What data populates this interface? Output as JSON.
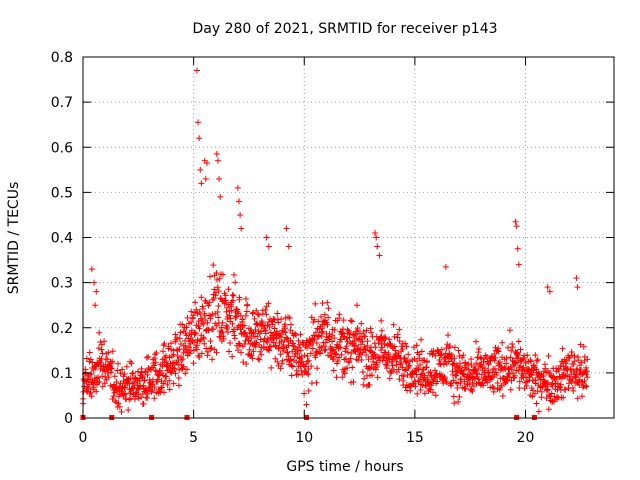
{
  "chart_data": {
    "type": "scatter",
    "title": "Day 280 of 2021, SRMTID for receiver p143",
    "xlabel": "GPS time / hours",
    "ylabel": "SRMTID / TECUs",
    "xlim": [
      0,
      24
    ],
    "ylim": [
      0,
      0.8
    ],
    "xticks": [
      0,
      5,
      10,
      15,
      20
    ],
    "yticks": [
      0,
      0.1,
      0.2,
      0.3,
      0.4,
      0.5,
      0.6,
      0.7,
      0.8
    ],
    "grid": true,
    "marker": "plus",
    "color": "#ff0000",
    "baseline_markers_x": [
      0.0,
      1.3,
      3.1,
      4.7,
      10.1,
      19.6,
      20.4
    ],
    "trend": [
      [
        0.0,
        0.07
      ],
      [
        0.5,
        0.09
      ],
      [
        0.8,
        0.13
      ],
      [
        1.5,
        0.07
      ],
      [
        2.5,
        0.07
      ],
      [
        3.0,
        0.09
      ],
      [
        3.5,
        0.1
      ],
      [
        4.0,
        0.12
      ],
      [
        4.5,
        0.15
      ],
      [
        5.0,
        0.19
      ],
      [
        5.5,
        0.22
      ],
      [
        6.0,
        0.24
      ],
      [
        6.5,
        0.23
      ],
      [
        7.0,
        0.21
      ],
      [
        7.5,
        0.19
      ],
      [
        8.0,
        0.18
      ],
      [
        8.5,
        0.19
      ],
      [
        9.0,
        0.17
      ],
      [
        9.5,
        0.15
      ],
      [
        10.0,
        0.13
      ],
      [
        10.5,
        0.17
      ],
      [
        11.0,
        0.19
      ],
      [
        11.5,
        0.17
      ],
      [
        12.0,
        0.15
      ],
      [
        12.5,
        0.16
      ],
      [
        13.0,
        0.13
      ],
      [
        13.5,
        0.15
      ],
      [
        14.0,
        0.14
      ],
      [
        14.5,
        0.12
      ],
      [
        15.0,
        0.11
      ],
      [
        15.5,
        0.1
      ],
      [
        16.0,
        0.11
      ],
      [
        16.5,
        0.12
      ],
      [
        17.0,
        0.1
      ],
      [
        17.5,
        0.09
      ],
      [
        18.0,
        0.1
      ],
      [
        18.5,
        0.1
      ],
      [
        19.0,
        0.11
      ],
      [
        19.5,
        0.13
      ],
      [
        20.0,
        0.1
      ],
      [
        20.5,
        0.08
      ],
      [
        21.0,
        0.08
      ],
      [
        21.5,
        0.08
      ],
      [
        22.0,
        0.11
      ],
      [
        22.5,
        0.1
      ],
      [
        22.8,
        0.09
      ]
    ],
    "spread": 0.045,
    "outliers": [
      [
        0.4,
        0.33
      ],
      [
        0.5,
        0.3
      ],
      [
        0.6,
        0.28
      ],
      [
        0.55,
        0.25
      ],
      [
        5.15,
        0.77
      ],
      [
        5.2,
        0.655
      ],
      [
        5.25,
        0.62
      ],
      [
        5.3,
        0.55
      ],
      [
        5.35,
        0.52
      ],
      [
        5.5,
        0.57
      ],
      [
        5.6,
        0.565
      ],
      [
        5.55,
        0.53
      ],
      [
        6.05,
        0.585
      ],
      [
        6.1,
        0.57
      ],
      [
        6.15,
        0.53
      ],
      [
        6.2,
        0.49
      ],
      [
        7.0,
        0.51
      ],
      [
        7.05,
        0.48
      ],
      [
        7.1,
        0.45
      ],
      [
        7.15,
        0.42
      ],
      [
        8.3,
        0.4
      ],
      [
        8.4,
        0.38
      ],
      [
        9.2,
        0.42
      ],
      [
        9.3,
        0.38
      ],
      [
        13.2,
        0.41
      ],
      [
        13.25,
        0.4
      ],
      [
        13.3,
        0.38
      ],
      [
        13.4,
        0.36
      ],
      [
        16.4,
        0.335
      ],
      [
        19.55,
        0.435
      ],
      [
        19.6,
        0.425
      ],
      [
        19.65,
        0.375
      ],
      [
        19.7,
        0.34
      ],
      [
        21.0,
        0.29
      ],
      [
        21.1,
        0.28
      ],
      [
        22.3,
        0.31
      ],
      [
        22.35,
        0.29
      ],
      [
        10.1,
        0.03
      ],
      [
        10.2,
        0.06
      ]
    ]
  }
}
